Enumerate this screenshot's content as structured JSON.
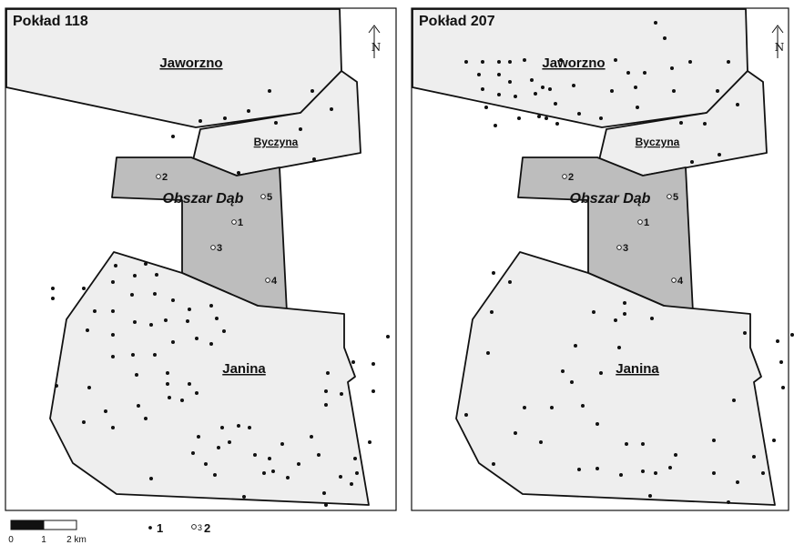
{
  "panels": [
    {
      "title": "Pokład 118"
    },
    {
      "title": "Pokład 207"
    }
  ],
  "areas": {
    "jaworzno": "Jaworzno",
    "byczyna": "Byczyna",
    "janina": "Janina",
    "study": "Obszar Dąb"
  },
  "north_symbol": "N",
  "sample_labels": [
    "2",
    "5",
    "1",
    "3",
    "4"
  ],
  "legend": {
    "item1_label": "1",
    "item2_small": "3",
    "item2_label": "2"
  },
  "scale": {
    "ticks": [
      "0",
      "1",
      "2 km"
    ]
  },
  "colors": {
    "mine_fill": "#eeeeee",
    "study_fill": "#bdbdbd",
    "outline": "#111111"
  }
}
